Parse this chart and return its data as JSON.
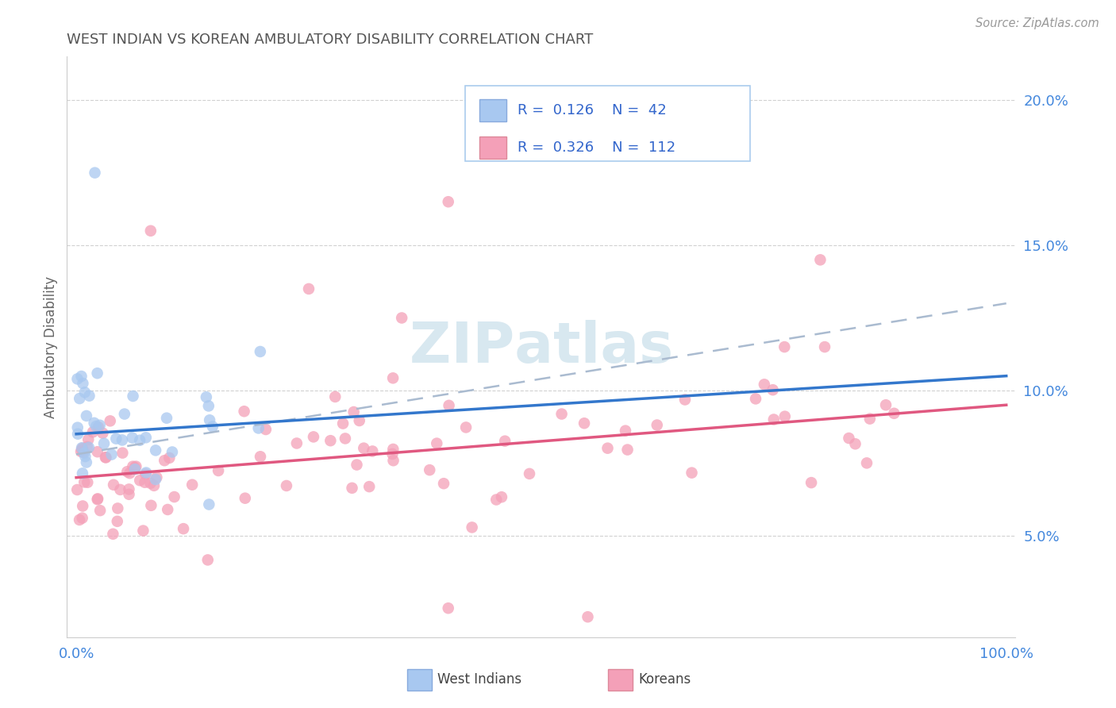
{
  "title": "WEST INDIAN VS KOREAN AMBULATORY DISABILITY CORRELATION CHART",
  "source": "Source: ZipAtlas.com",
  "ylabel": "Ambulatory Disability",
  "legend1_R": "0.126",
  "legend1_N": "42",
  "legend2_R": "0.326",
  "legend2_N": "112",
  "west_indian_color": "#a8c8f0",
  "korean_color": "#f4a0b8",
  "west_indian_line_color": "#3377cc",
  "korean_line_color": "#e05880",
  "dashed_line_color": "#aabbd0",
  "title_color": "#555555",
  "axis_tick_color": "#4488dd",
  "legend_text_color": "#3366cc",
  "legend_num_color": "#dd4444",
  "background_color": "#ffffff",
  "ylim_min": 1.5,
  "ylim_max": 21.5,
  "xlim_min": -1,
  "xlim_max": 101,
  "wi_trend": [
    8.5,
    10.5
  ],
  "ko_trend": [
    7.0,
    9.5
  ],
  "dash_trend": [
    7.8,
    13.0
  ],
  "watermark": "ZIPAtlas",
  "watermark_color": "#d8e8f0"
}
